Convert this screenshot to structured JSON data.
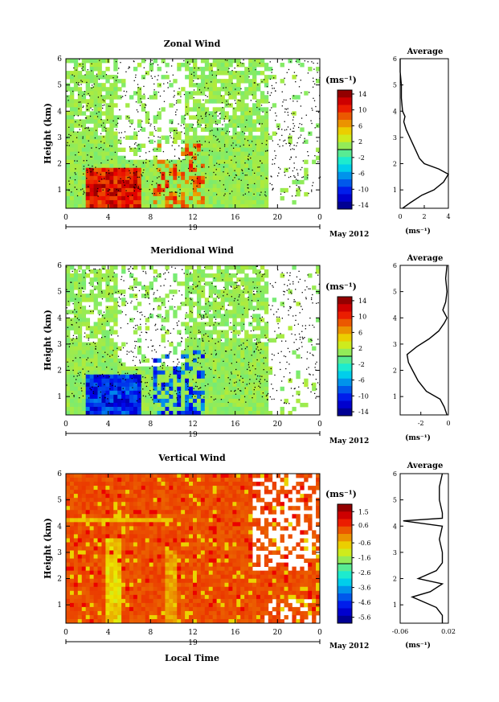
{
  "month_label": "May 2012",
  "date_label": "19",
  "time_axis_label": "Local Time",
  "height_axis_label": "Height (km)",
  "avg_title": "Average",
  "unit_label": "(ms⁻¹)",
  "time_ticks": [
    "0",
    "4",
    "8",
    "12",
    "16",
    "20",
    "0"
  ],
  "height_ticks": [
    "1",
    "2",
    "3",
    "4",
    "5",
    "6"
  ],
  "chart_data": [
    {
      "type": "heatmap",
      "title": "Zonal Wind",
      "xlabel": "",
      "ylabel": "Height (km)",
      "xlim": [
        0,
        24
      ],
      "ylim": [
        0.3,
        6
      ],
      "colorbar": {
        "label": "(ms⁻¹)",
        "range": [
          -15,
          15
        ],
        "ticks": [
          14,
          10,
          6,
          2,
          -2,
          -6,
          -10,
          -14
        ]
      },
      "typical_values": {
        "background": 1,
        "low_level_jet_0_1_5km": 10
      },
      "average_profile": {
        "xlim": [
          0,
          4
        ],
        "xticks": [
          "0",
          "2",
          "4"
        ],
        "xlabel": "(ms⁻¹)",
        "height": [
          0.3,
          0.5,
          0.8,
          1.0,
          1.3,
          1.6,
          1.8,
          2.0,
          2.2,
          2.5,
          2.8,
          3.0,
          3.3,
          3.6,
          3.8,
          4.0,
          4.5,
          5.0,
          5.5,
          6.0
        ],
        "value": [
          0.2,
          0.8,
          1.8,
          2.8,
          3.6,
          4.0,
          3.2,
          2.0,
          1.6,
          1.3,
          1.0,
          0.8,
          0.5,
          0.3,
          0.4,
          0.2,
          0.1,
          0.1,
          0.0,
          0.0
        ]
      }
    },
    {
      "type": "heatmap",
      "title": "Meridional Wind",
      "xlabel": "",
      "ylabel": "Height (km)",
      "xlim": [
        0,
        24
      ],
      "ylim": [
        0.3,
        6
      ],
      "colorbar": {
        "label": "(ms⁻¹)",
        "range": [
          -15,
          15
        ],
        "ticks": [
          14,
          10,
          6,
          2,
          -2,
          -6,
          -10,
          -14
        ]
      },
      "typical_values": {
        "background": 1,
        "southerly_flow_1_3km": -9
      },
      "average_profile": {
        "xlim": [
          -3.5,
          0
        ],
        "xticks": [
          "-2",
          "0"
        ],
        "xlabel": "(ms⁻¹)",
        "height": [
          0.3,
          0.6,
          0.9,
          1.2,
          1.6,
          2.0,
          2.3,
          2.6,
          2.9,
          3.2,
          3.5,
          3.8,
          4.0,
          4.3,
          4.6,
          5.0,
          5.5,
          6.0
        ],
        "value": [
          -0.1,
          -0.3,
          -0.6,
          -1.6,
          -2.2,
          -2.6,
          -2.9,
          -3.0,
          -2.3,
          -1.4,
          -0.7,
          -0.3,
          -0.1,
          -0.4,
          -0.2,
          -0.1,
          -0.2,
          -0.1
        ]
      }
    },
    {
      "type": "heatmap",
      "title": "Vertical Wind",
      "xlabel": "Local Time",
      "ylabel": "Height (km)",
      "xlim": [
        0,
        24
      ],
      "ylim": [
        0.3,
        6
      ],
      "colorbar": {
        "label": "(ms⁻¹)",
        "range": [
          -6,
          2
        ],
        "ticks": [
          1.5,
          0.6,
          -0.6,
          -1.6,
          -2.6,
          -3.6,
          -4.6,
          -5.6
        ]
      },
      "typical_values": {
        "background": 0.3
      },
      "average_profile": {
        "xlim": [
          -0.06,
          0.02
        ],
        "xticks": [
          "-0.06",
          "0.02"
        ],
        "xlabel": "(ms⁻¹)",
        "height": [
          0.3,
          0.6,
          0.9,
          1.1,
          1.3,
          1.5,
          1.8,
          2.0,
          2.3,
          2.6,
          3.0,
          3.5,
          4.0,
          4.2,
          4.3,
          4.5,
          5.0,
          5.5,
          6.0
        ],
        "value": [
          0.01,
          0.01,
          0.0,
          -0.02,
          -0.04,
          -0.01,
          0.01,
          -0.03,
          0.0,
          0.01,
          0.01,
          0.005,
          0.01,
          -0.055,
          0.01,
          0.01,
          0.005,
          0.005,
          0.01
        ]
      }
    }
  ]
}
